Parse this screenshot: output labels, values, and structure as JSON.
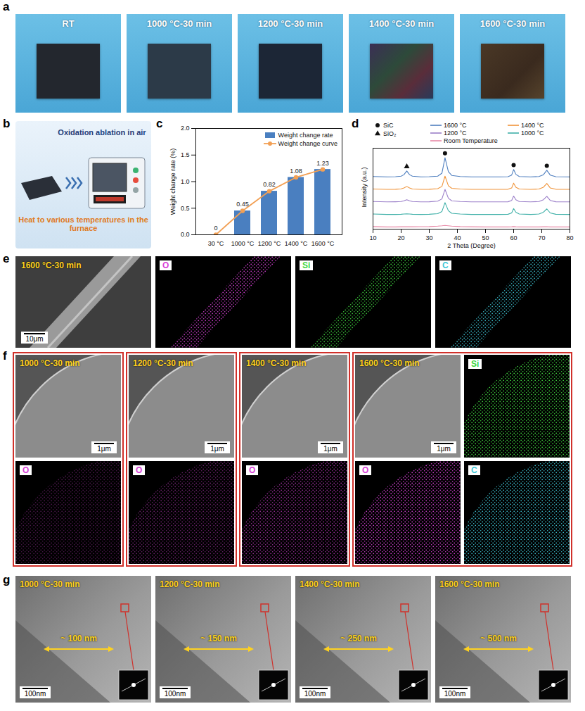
{
  "chart_data": [
    {
      "panel": "c",
      "type": "bar",
      "categories": [
        "30 °C",
        "1000 °C",
        "1200 °C",
        "1400 °C",
        "1600 °C"
      ],
      "y_label": "Weight change rate (%)",
      "ylim": [
        0,
        2
      ],
      "yticks": [
        {
          "value": 0,
          "label": "0.0"
        },
        0.5,
        {
          "value": 1,
          "label": "1.0"
        },
        1.5,
        {
          "value": 2,
          "label": "2.0"
        }
      ],
      "series": [
        {
          "name": "Weight change rate",
          "type": "bar",
          "color": "#4a7fc0",
          "values": [
            0,
            0.45,
            0.82,
            1.08,
            1.23
          ]
        },
        {
          "name": "Weight change curve",
          "type": "line",
          "color": "#f2a055",
          "marker": "circle",
          "values": [
            0,
            0.45,
            0.82,
            1.08,
            1.23
          ]
        }
      ],
      "data_labels": true,
      "legend": "upper right",
      "grid": false
    },
    {
      "panel": "d",
      "type": "line",
      "x_label": "2 Theta (Degree)",
      "y_label": "Intensity (a.u.)",
      "x": [
        10,
        15,
        18,
        20,
        21,
        22,
        23,
        24,
        27,
        30,
        33,
        34.5,
        35.6,
        36.8,
        38,
        41,
        45,
        50,
        55,
        58,
        59.3,
        60,
        60.8,
        62,
        66,
        69,
        70.6,
        71.8,
        73,
        75,
        80
      ],
      "xlim": [
        10,
        80
      ],
      "xticks": [
        10,
        20,
        30,
        40,
        50,
        60,
        70,
        80
      ],
      "ylim": [
        0,
        11
      ],
      "yticks": [],
      "tick_labels": "x",
      "legend": "top",
      "series": [
        {
          "name": "1600 °C",
          "color": "#4f7fbf",
          "values": [
            7.15,
            7.1,
            7.12,
            7.2,
            7.4,
            7.9,
            7.4,
            7.2,
            7.1,
            7.12,
            7.2,
            7.6,
            9.7,
            7.8,
            7.3,
            7.15,
            7.1,
            7.1,
            7.1,
            7.12,
            7.35,
            8.1,
            7.45,
            7.15,
            7.1,
            7.15,
            7.4,
            8.0,
            7.35,
            7.12,
            7.1
          ]
        },
        {
          "name": "1400 °C",
          "color": "#f0943a",
          "values": [
            5.45,
            5.4,
            5.42,
            5.48,
            5.6,
            5.8,
            5.6,
            5.45,
            5.4,
            5.42,
            5.5,
            5.8,
            7.2,
            5.9,
            5.55,
            5.45,
            5.4,
            5.4,
            5.4,
            5.42,
            5.6,
            6.25,
            5.7,
            5.45,
            5.4,
            5.45,
            5.7,
            6.2,
            5.6,
            5.42,
            5.4
          ]
        },
        {
          "name": "1200 °C",
          "color": "#9b7fc9",
          "values": [
            3.75,
            3.7,
            3.72,
            3.75,
            3.85,
            4.0,
            3.85,
            3.75,
            3.7,
            3.72,
            3.8,
            4.1,
            5.4,
            4.2,
            3.85,
            3.75,
            3.7,
            3.7,
            3.7,
            3.72,
            3.9,
            4.5,
            4.0,
            3.75,
            3.7,
            3.75,
            4.0,
            4.45,
            3.9,
            3.72,
            3.7
          ]
        },
        {
          "name": "1000 °C",
          "color": "#3fb0a8",
          "values": [
            2.05,
            2.0,
            2.0,
            2.02,
            2.05,
            2.08,
            2.05,
            2.02,
            2.0,
            2.02,
            2.1,
            2.4,
            3.6,
            2.5,
            2.15,
            2.05,
            2.0,
            2.0,
            2.0,
            2.02,
            2.2,
            2.8,
            2.3,
            2.05,
            2.0,
            2.05,
            2.3,
            2.75,
            2.2,
            2.02,
            2.0
          ]
        },
        {
          "name": "Room Temperature",
          "color": "#e88aa8",
          "values": [
            0.35,
            0.3,
            0.3,
            0.32,
            0.32,
            0.33,
            0.32,
            0.32,
            0.33,
            0.35,
            0.4,
            0.45,
            0.5,
            0.45,
            0.4,
            0.35,
            0.32,
            0.3,
            0.3,
            0.3,
            0.32,
            0.35,
            0.32,
            0.3,
            0.3,
            0.3,
            0.32,
            0.33,
            0.3,
            0.3,
            0.3
          ]
        }
      ],
      "markers": [
        {
          "name": "SiC",
          "marker": "circle"
        },
        {
          "name": "SiO₂",
          "marker": "triangle"
        }
      ],
      "peaks": [
        {
          "name": "SiO₂",
          "x": 22,
          "y": 8.5
        },
        {
          "name": "SiC",
          "x": 35.6,
          "y": 10.3
        },
        {
          "name": "SiC",
          "x": 60,
          "y": 8.7
        },
        {
          "name": "SiC",
          "x": 71.8,
          "y": 8.6
        }
      ]
    }
  ],
  "panels": {
    "a": {
      "letter": "a",
      "photos": [
        "RT",
        "1000 °C-30 min",
        "1200 °C-30 min",
        "1400 °C-30 min",
        "1600 °C-30 min"
      ]
    },
    "b": {
      "letter": "b",
      "top_text": "Oxidation ablation in air",
      "bottom_text": "Heat to various temperatures in the furnace"
    },
    "e": {
      "letter": "e",
      "image": {
        "label": "1600 °C-30 min",
        "scale_bar": "10μm"
      },
      "maps": [
        {
          "element": "O",
          "color": "#d83fd8"
        },
        {
          "element": "Si",
          "color": "#3fd83f"
        },
        {
          "element": "C",
          "color": "#3fc8d8"
        }
      ]
    },
    "f": {
      "letter": "f",
      "groups": [
        {
          "label": "1000 °C-30 min",
          "scale_bar": "1μm",
          "maps": [
            {
              "element": "O",
              "color": "#d83fd8"
            }
          ]
        },
        {
          "label": "1200 °C-30 min",
          "scale_bar": "1μm",
          "maps": [
            {
              "element": "O",
              "color": "#d83fd8"
            }
          ]
        },
        {
          "label": "1400 °C-30 min",
          "scale_bar": "1μm",
          "maps": [
            {
              "element": "O",
              "color": "#d83fd8"
            }
          ]
        },
        {
          "label": "1600 °C-30 min",
          "scale_bar": "1μm",
          "maps": [
            {
              "element": "Si",
              "color": "#3fd83f"
            },
            {
              "element": "O",
              "color": "#d83fd8"
            },
            {
              "element": "C",
              "color": "#3fc8d8"
            }
          ]
        }
      ]
    },
    "g": {
      "letter": "g",
      "images": [
        {
          "label": "1000 °C-30 min",
          "thickness": "~ 100 nm",
          "scale_bar": "100nm"
        },
        {
          "label": "1200 °C-30 min",
          "thickness": "~ 150 nm",
          "scale_bar": "100nm"
        },
        {
          "label": "1400 °C-30 min",
          "thickness": "~ 250 nm",
          "scale_bar": "100nm"
        },
        {
          "label": "1600 °C-30 min",
          "thickness": "~ 500 nm",
          "scale_bar": "100nm"
        }
      ]
    }
  }
}
